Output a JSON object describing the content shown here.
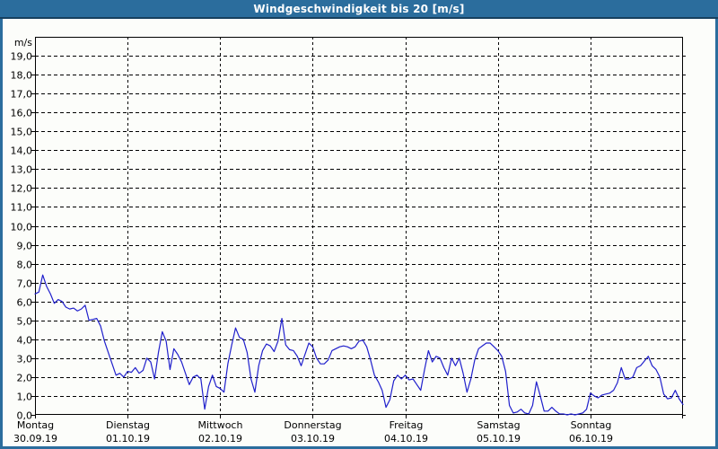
{
  "title": "Windgeschwindigkeit bis 20 [m/s]",
  "colors": {
    "frame_blue": "#2b6d9d",
    "title_separator": "#17405f",
    "plot_background": "#fcfdfa",
    "grid": "#000000",
    "line": "#2020cc",
    "text": "#000000",
    "title_text": "#ffffff"
  },
  "chart_data": {
    "type": "line",
    "title": "Windgeschwindigkeit bis 20 [m/s]",
    "unit_label": "m/s",
    "ylim": [
      0,
      20
    ],
    "ytick_step": 1.0,
    "grid": true,
    "legend": "none",
    "ytick_labels": [
      "0,0",
      "1,0",
      "2,0",
      "3,0",
      "4,0",
      "5,0",
      "6,0",
      "7,0",
      "8,0",
      "9,0",
      "10,0",
      "11,0",
      "12,0",
      "13,0",
      "14,0",
      "15,0",
      "16,0",
      "17,0",
      "18,0",
      "19,0"
    ],
    "days": [
      {
        "name": "Montag",
        "date": "30.09.19"
      },
      {
        "name": "Dienstag",
        "date": "01.10.19"
      },
      {
        "name": "Mittwoch",
        "date": "02.10.19"
      },
      {
        "name": "Donnerstag",
        "date": "03.10.19"
      },
      {
        "name": "Freitag",
        "date": "04.10.19"
      },
      {
        "name": "Samstag",
        "date": "05.10.19"
      },
      {
        "name": "Sonntag",
        "date": "06.10.19"
      }
    ],
    "x_unit": "hours",
    "hours_per_point": 1,
    "series": [
      {
        "name": "Windgeschwindigkeit",
        "values": [
          6.4,
          6.5,
          7.4,
          6.8,
          6.4,
          5.9,
          6.1,
          6.0,
          5.7,
          5.6,
          5.65,
          5.5,
          5.6,
          5.8,
          5.0,
          5.05,
          5.1,
          4.7,
          3.9,
          3.3,
          2.7,
          2.1,
          2.2,
          2.0,
          2.3,
          2.25,
          2.5,
          2.2,
          2.35,
          3.0,
          2.8,
          1.9,
          3.3,
          4.4,
          3.9,
          2.4,
          3.5,
          3.2,
          2.8,
          2.2,
          1.6,
          2.0,
          2.1,
          1.9,
          0.3,
          1.5,
          2.1,
          1.5,
          1.4,
          1.2,
          2.7,
          3.7,
          4.6,
          4.1,
          4.0,
          3.3,
          1.9,
          1.2,
          2.6,
          3.4,
          3.75,
          3.65,
          3.35,
          3.9,
          5.1,
          3.7,
          3.45,
          3.4,
          3.1,
          2.6,
          3.2,
          3.8,
          3.6,
          3.0,
          2.7,
          2.7,
          2.9,
          3.4,
          3.5,
          3.6,
          3.65,
          3.6,
          3.5,
          3.6,
          3.9,
          3.95,
          3.6,
          2.9,
          2.1,
          1.75,
          1.3,
          0.4,
          0.8,
          1.8,
          2.1,
          1.9,
          2.1,
          1.85,
          1.9,
          1.6,
          1.3,
          2.4,
          3.4,
          2.8,
          3.1,
          3.0,
          2.5,
          2.1,
          3.0,
          2.6,
          3.0,
          2.2,
          1.2,
          1.9,
          2.9,
          3.5,
          3.65,
          3.8,
          3.8,
          3.6,
          3.4,
          3.1,
          2.3,
          0.5,
          0.1,
          0.15,
          0.3,
          0.1,
          0.05,
          0.5,
          1.75,
          1.0,
          0.2,
          0.2,
          0.4,
          0.2,
          0.05,
          0.05,
          0.0,
          0.05,
          0.0,
          0.05,
          0.1,
          0.3,
          1.15,
          1.0,
          0.9,
          1.05,
          1.1,
          1.15,
          1.3,
          1.7,
          2.5,
          1.9,
          1.9,
          2.0,
          2.5,
          2.6,
          2.85,
          3.1,
          2.6,
          2.4,
          2.0,
          1.1,
          0.85,
          0.9,
          1.3,
          0.85,
          0.55
        ]
      }
    ]
  }
}
